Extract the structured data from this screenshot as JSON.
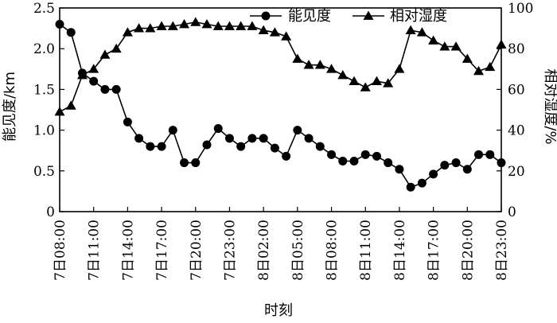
{
  "chart_data": {
    "type": "line",
    "xlabel": "时刻",
    "ylabel_left": "能见度/km",
    "ylabel_right": "相对湿度/%",
    "ylim_left": [
      0,
      2.5
    ],
    "ylim_right": [
      0,
      100
    ],
    "yticks_left": [
      "0",
      "0.5",
      "1.0",
      "1.5",
      "2.0",
      "2.5"
    ],
    "yticks_right": [
      "0",
      "20",
      "40",
      "60",
      "80",
      "100"
    ],
    "x_labels": [
      "7日08:00",
      "7日11:00",
      "7日14:00",
      "7日17:00",
      "7日20:00",
      "7日23:00",
      "8日02:00",
      "8日05:00",
      "8日08:00",
      "8日11:00",
      "8日14:00",
      "8日17:00",
      "8日20:00",
      "8日23:00"
    ],
    "x_label_hours": [
      0,
      3,
      6,
      9,
      12,
      15,
      18,
      21,
      24,
      27,
      30,
      33,
      36,
      39
    ],
    "x_range": [
      0,
      39
    ],
    "legend_position": "top",
    "series": [
      {
        "name": "能见度",
        "axis": "left",
        "marker": "circle",
        "x": [
          0,
          1,
          2,
          3,
          4,
          5,
          6,
          7,
          8,
          9,
          10,
          11,
          12,
          13,
          14,
          15,
          16,
          17,
          18,
          19,
          20,
          21,
          22,
          23,
          24,
          25,
          26,
          27,
          28,
          29,
          30,
          31,
          32,
          33,
          34,
          35,
          36,
          37,
          38,
          39
        ],
        "values": [
          2.3,
          2.2,
          1.7,
          1.6,
          1.5,
          1.5,
          1.1,
          0.9,
          0.8,
          0.8,
          1.0,
          0.6,
          0.6,
          0.82,
          1.02,
          0.9,
          0.8,
          0.9,
          0.9,
          0.78,
          0.68,
          1.0,
          0.9,
          0.8,
          0.7,
          0.62,
          0.62,
          0.7,
          0.68,
          0.6,
          0.52,
          0.3,
          0.35,
          0.46,
          0.57,
          0.6,
          0.52,
          0.7,
          0.7,
          0.6
        ]
      },
      {
        "name": "相对湿度",
        "axis": "right",
        "marker": "triangle",
        "x": [
          0,
          1,
          2,
          3,
          4,
          5,
          6,
          7,
          8,
          9,
          10,
          11,
          12,
          13,
          14,
          15,
          16,
          17,
          18,
          19,
          20,
          21,
          22,
          23,
          24,
          25,
          26,
          27,
          28,
          29,
          30,
          31,
          32,
          33,
          34,
          35,
          36,
          37,
          38,
          39
        ],
        "values": [
          49,
          52,
          67,
          70,
          77,
          80,
          88,
          90,
          90,
          91,
          91,
          92,
          93,
          92,
          91,
          91,
          91,
          91,
          89,
          88,
          86,
          75,
          72,
          72,
          70,
          67,
          64,
          61,
          64,
          63,
          70,
          89,
          88,
          84,
          81,
          81,
          75,
          69,
          71,
          82
        ]
      }
    ]
  }
}
